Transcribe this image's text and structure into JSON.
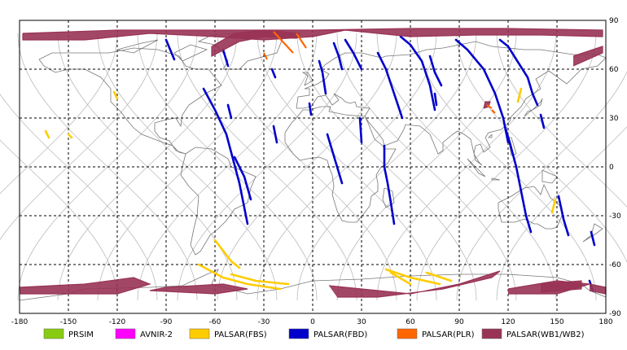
{
  "map": {
    "x_ticks": [
      "-180",
      "-150",
      "-120",
      "-90",
      "-60",
      "-30",
      "0",
      "30",
      "60",
      "90",
      "120",
      "150",
      "180"
    ],
    "y_ticks": [
      "90",
      "60",
      "30",
      "0",
      "-30",
      "-60",
      "-90"
    ]
  },
  "legend": [
    {
      "label": "PRSIM",
      "color": "#88cc11"
    },
    {
      "label": "AVNIR-2",
      "color": "#ff00ff"
    },
    {
      "label": "PALSAR(FBS)",
      "color": "#ffcc00"
    },
    {
      "label": "PALSAR(FBD)",
      "color": "#0000cc"
    },
    {
      "label": "PALSAR(PLR)",
      "color": "#ff6600"
    },
    {
      "label": "PALSAR(WB1/WB2)",
      "color": "#993355"
    }
  ],
  "colors": {
    "grid": "#000000",
    "orbit": "#bbbbbb",
    "coast": "#777777",
    "prism": "#88cc11",
    "avnir": "#ff00ff",
    "fbs": "#ffcc00",
    "fbd": "#0000cc",
    "plr": "#ff6600",
    "wb": "#993355"
  }
}
